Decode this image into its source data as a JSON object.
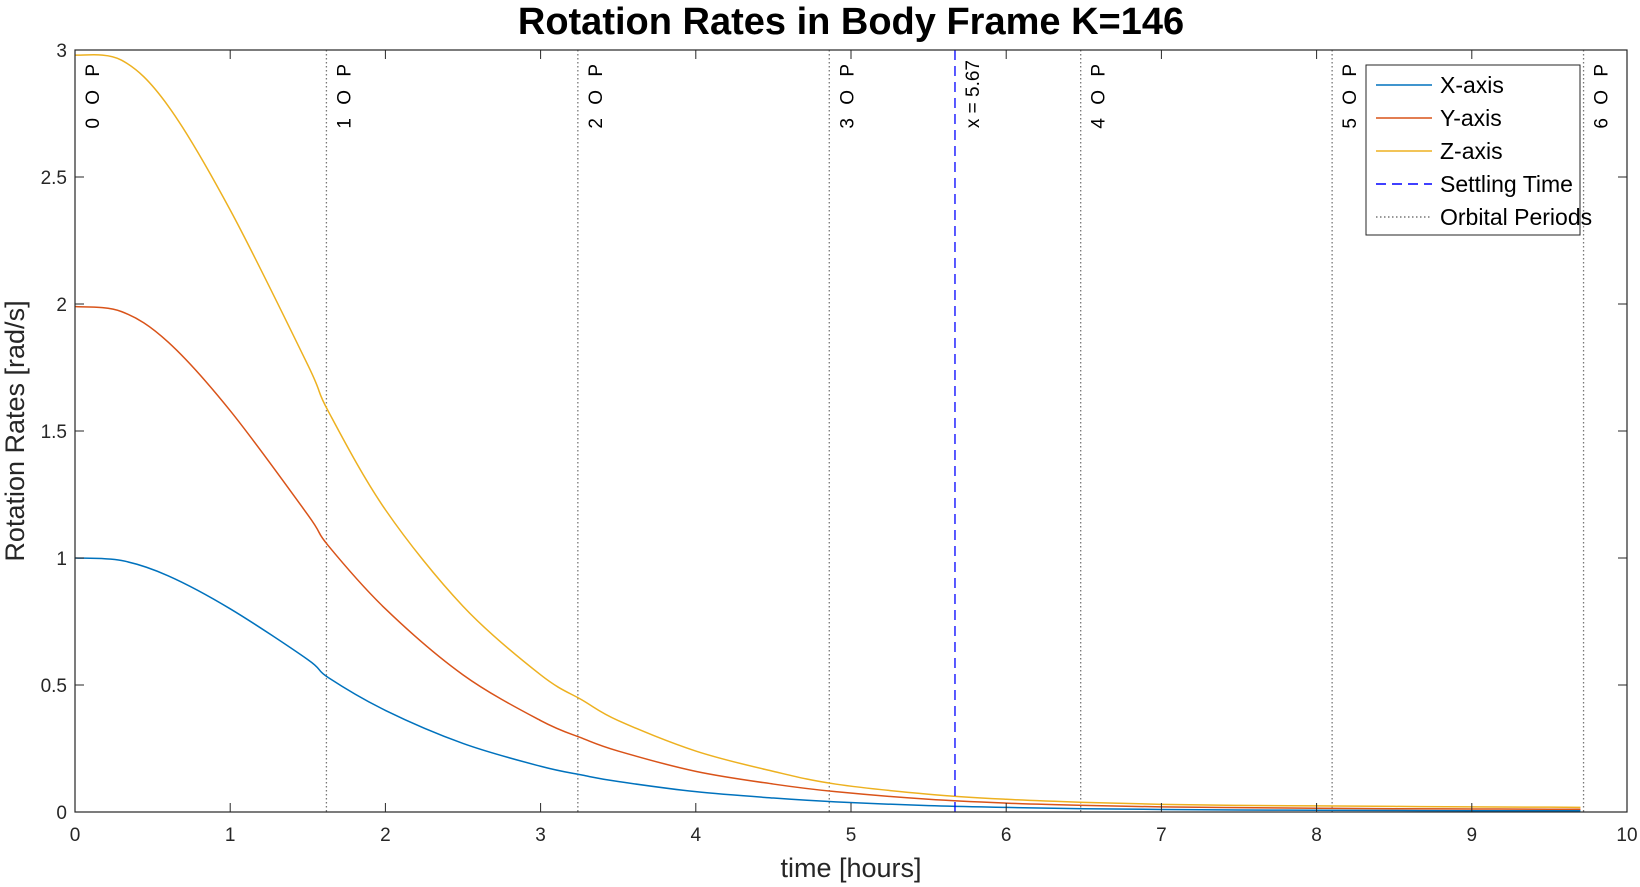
{
  "chart_data": {
    "type": "line",
    "title": "Rotation Rates in Body Frame K=146",
    "xlabel": "time [hours]",
    "ylabel": "Rotation Rates  [rad/s]",
    "xlim": [
      0,
      10
    ],
    "ylim": [
      0,
      3
    ],
    "xticks": [
      "0",
      "1",
      "2",
      "3",
      "4",
      "5",
      "6",
      "7",
      "8",
      "9",
      "10"
    ],
    "yticks": [
      "0",
      "0.5",
      "1",
      "1.5",
      "2",
      "2.5",
      "3"
    ],
    "grid": false,
    "legend_position": "top-right",
    "series": [
      {
        "name": "X-axis",
        "color": "#0072BD",
        "x": [
          0,
          0.3,
          0.6,
          1.0,
          1.5,
          1.63,
          2.0,
          2.5,
          3.0,
          3.27,
          3.5,
          4.0,
          4.5,
          4.9,
          5.5,
          6.0,
          6.5,
          7.0,
          7.5,
          8.0,
          8.5,
          9.0,
          9.5,
          9.7
        ],
        "y": [
          1.0,
          0.99,
          0.93,
          0.8,
          0.6,
          0.53,
          0.4,
          0.27,
          0.18,
          0.145,
          0.12,
          0.08,
          0.055,
          0.04,
          0.025,
          0.018,
          0.013,
          0.01,
          0.008,
          0.007,
          0.006,
          0.005,
          0.005,
          0.005
        ]
      },
      {
        "name": "Y-axis",
        "color": "#D95319",
        "x": [
          0,
          0.3,
          0.6,
          1.0,
          1.5,
          1.63,
          2.0,
          2.5,
          3.0,
          3.27,
          3.5,
          4.0,
          4.5,
          4.9,
          5.5,
          6.0,
          6.5,
          7.0,
          7.5,
          8.0,
          8.5,
          9.0,
          9.5,
          9.7
        ],
        "y": [
          1.99,
          1.97,
          1.85,
          1.58,
          1.17,
          1.05,
          0.8,
          0.54,
          0.36,
          0.29,
          0.24,
          0.16,
          0.11,
          0.08,
          0.05,
          0.035,
          0.026,
          0.02,
          0.017,
          0.015,
          0.013,
          0.012,
          0.011,
          0.011
        ]
      },
      {
        "name": "Z-axis",
        "color": "#EDB120",
        "x": [
          0,
          0.3,
          0.6,
          1.0,
          1.5,
          1.63,
          2.0,
          2.5,
          3.0,
          3.27,
          3.5,
          4.0,
          4.5,
          4.9,
          5.5,
          6.0,
          6.5,
          7.0,
          7.5,
          8.0,
          8.5,
          9.0,
          9.5,
          9.7
        ],
        "y": [
          2.98,
          2.96,
          2.78,
          2.37,
          1.76,
          1.58,
          1.19,
          0.81,
          0.54,
          0.44,
          0.36,
          0.24,
          0.16,
          0.11,
          0.07,
          0.05,
          0.038,
          0.03,
          0.026,
          0.024,
          0.022,
          0.02,
          0.019,
          0.018
        ]
      }
    ],
    "settling_time": {
      "name": "Settling Time",
      "x": 5.67,
      "label": "x = 5.67",
      "color": "#0000FF"
    },
    "orbital_periods": {
      "name": "Orbital Periods",
      "x": [
        0,
        1.62,
        3.24,
        4.86,
        6.48,
        8.1,
        9.72
      ],
      "labels": [
        "0 O P",
        "1 O P",
        "2 O P",
        "3 O P",
        "4 O P",
        "5 O P",
        "6 O P"
      ],
      "color": "#777777"
    },
    "legend": [
      "X-axis",
      "Y-axis",
      "Z-axis",
      "Settling Time",
      "Orbital Periods"
    ]
  }
}
